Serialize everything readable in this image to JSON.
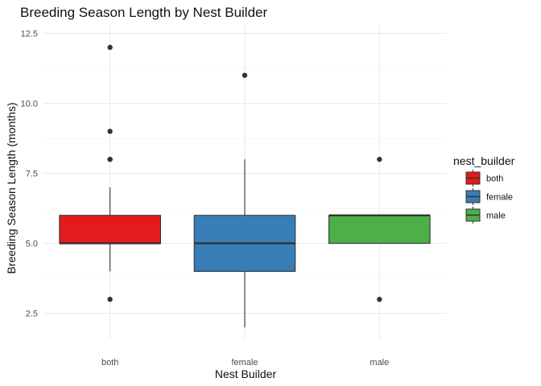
{
  "chart_data": {
    "type": "boxplot",
    "title": "Breeding Season Length by Nest Builder",
    "xlabel": "Nest Builder",
    "ylabel": "Breeding Season Length (months)",
    "ylim": [
      1.6,
      12.8
    ],
    "yticks": [
      2.5,
      5.0,
      7.5,
      10.0,
      12.5
    ],
    "ytick_labels": [
      "2.5",
      "5.0",
      "7.5",
      "10.0",
      "12.5"
    ],
    "categories": [
      "both",
      "female",
      "male"
    ],
    "grid": true,
    "legend": {
      "title": "nest_builder",
      "placement": "right",
      "entries": [
        "both",
        "female",
        "male"
      ]
    },
    "series": [
      {
        "category": "both",
        "color": "#E41A1C",
        "min": 4,
        "q1": 5,
        "median": 5,
        "q3": 6,
        "max": 7,
        "outliers": [
          3,
          8,
          8,
          9,
          12
        ]
      },
      {
        "category": "female",
        "color": "#377EB8",
        "min": 2,
        "q1": 4,
        "median": 5,
        "q3": 6,
        "max": 8,
        "outliers": [
          11
        ]
      },
      {
        "category": "male",
        "color": "#4DAF4A",
        "min": 5,
        "q1": 5,
        "median": 6,
        "q3": 6,
        "max": 6,
        "outliers": [
          3,
          8
        ]
      }
    ]
  }
}
